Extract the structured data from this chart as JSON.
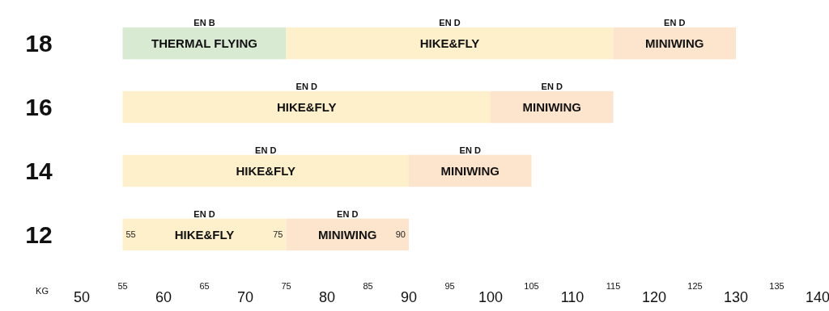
{
  "chart_data": {
    "type": "bar",
    "orientation": "horizontal",
    "xlabel": "KG",
    "categories": [
      "18",
      "16",
      "14",
      "12"
    ],
    "xlim": [
      50,
      140
    ],
    "xticks": [
      50,
      60,
      70,
      80,
      90,
      100,
      110,
      120,
      130,
      140
    ],
    "x2lim": [
      55,
      135
    ],
    "x2ticks": [
      55,
      65,
      75,
      85,
      95,
      105,
      115,
      125,
      135
    ],
    "grid": false,
    "series": [
      {
        "name": "THERMAL FLYING",
        "color": "#d9ead3",
        "base": [
          55,
          null,
          null,
          null
        ],
        "values": [
          20,
          null,
          null,
          null
        ],
        "value_labels": [
          "EN B",
          null,
          null,
          null
        ]
      },
      {
        "name": "HIKE&FLY",
        "color": "#fff0cc",
        "base": [
          75,
          55,
          55,
          55
        ],
        "values": [
          40,
          45,
          35,
          20
        ],
        "value_labels": [
          "EN D",
          "EN D",
          "EN D",
          "EN D"
        ]
      },
      {
        "name": "MINIWING",
        "color": "#fce4cd",
        "base": [
          115,
          100,
          90,
          75
        ],
        "values": [
          15,
          15,
          15,
          15
        ],
        "value_labels": [
          "EN D",
          "EN D",
          "EN D",
          "EN D"
        ]
      }
    ],
    "annotations": [
      {
        "text": "55",
        "x": 55,
        "y": "12"
      },
      {
        "text": "75",
        "x": 75,
        "y": "12"
      },
      {
        "text": "90",
        "x": 90,
        "y": "12"
      }
    ]
  }
}
